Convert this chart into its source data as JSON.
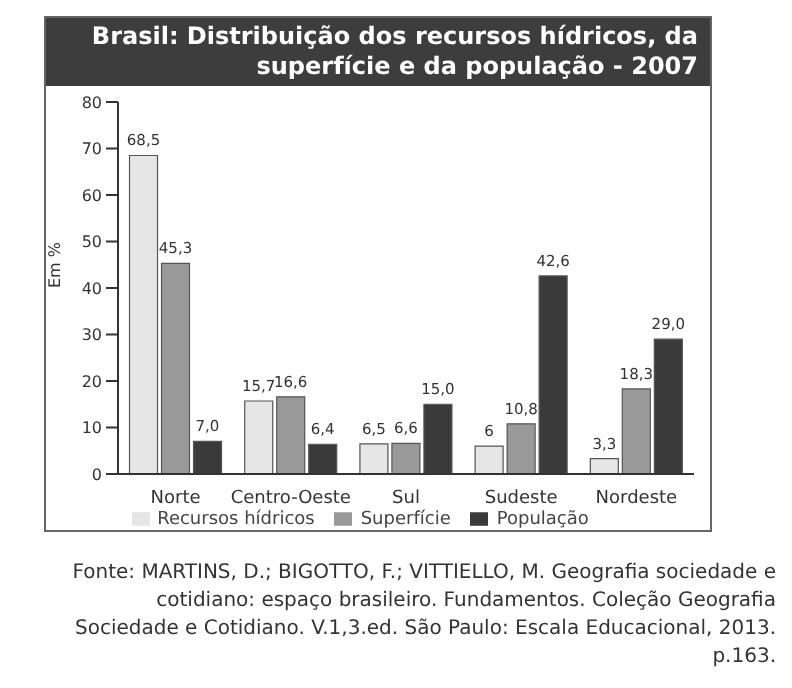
{
  "chart_data": {
    "type": "bar",
    "title": "Brasil: Distribuição dos recursos hídricos, da superfície e da população - 2007",
    "ylabel": "Em %",
    "categories": [
      "Norte",
      "Centro-Oeste",
      "Sul",
      "Sudeste",
      "Nordeste"
    ],
    "series": [
      {
        "name": "Recursos hídricos",
        "color": "#e6e6e6",
        "values": [
          68.5,
          15.7,
          6.5,
          6,
          3.3
        ],
        "value_labels": [
          "68,5",
          "15,7",
          "6,5",
          "6",
          "3,3"
        ]
      },
      {
        "name": "Superfície",
        "color": "#999999",
        "values": [
          45.3,
          16.6,
          6.6,
          10.8,
          18.3
        ],
        "value_labels": [
          "45,3",
          "16,6",
          "6,6",
          "10,8",
          "18,3"
        ]
      },
      {
        "name": "População",
        "color": "#3a3a3a",
        "values": [
          7.0,
          6.4,
          15.0,
          42.6,
          29.0
        ],
        "value_labels": [
          "7,0",
          "6,4",
          "15,0",
          "42,6",
          "29,0"
        ]
      }
    ],
    "ylim": [
      0,
      80
    ],
    "yticks": [
      0,
      10,
      20,
      30,
      40,
      50,
      60,
      70,
      80
    ],
    "grid": false,
    "legend": "bottom",
    "annotations": [
      "Fonte: MARTINS, D.; BIGOTTO, F.; VITTIELLO, M. Geografia sociedade e cotidiano: espaço brasileiro. Fundamentos. Coleção Geografia Sociedade e Cotidiano. V.1,3.ed. São Paulo: Escala Educacional, 2013. p.163."
    ]
  }
}
